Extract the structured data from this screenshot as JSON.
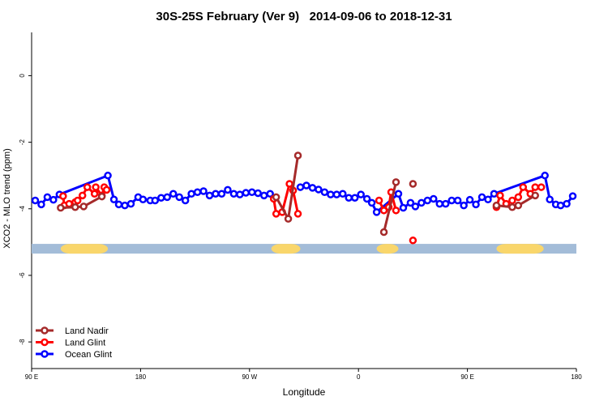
{
  "chart_data": {
    "type": "line",
    "title": "30S-25S February (Ver 9)   2014-09-06 to 2018-12-31",
    "x_label": "Longitude",
    "y_label": "XCO2 - MLO trend (ppm)",
    "xlim": [
      90,
      540
    ],
    "ylim": [
      -8.8,
      1.3
    ],
    "xticks": [
      {
        "value": 90,
        "label": "90 E"
      },
      180,
      {
        "value": 270,
        "label": "90 W"
      },
      {
        "value": 360,
        "label": "0"
      },
      {
        "value": 450,
        "label": "90 E"
      },
      {
        "value": 540,
        "label": "180"
      }
    ],
    "yticks": [
      0,
      -2,
      -4,
      -6,
      -8
    ],
    "band_y": -5.2,
    "ocean_color": "#a3bcd8",
    "land_color": "#f9d66b",
    "land_bands": [
      [
        114,
        153
      ],
      [
        288,
        312
      ],
      [
        375,
        393
      ],
      [
        474,
        513
      ]
    ],
    "legend": "bottom-left",
    "series": [
      {
        "name": "Land Nadir",
        "color": "#a52a2a",
        "x": [
          114,
          126,
          133,
          148,
          220,
          292,
          302,
          310,
          380,
          381,
          391,
          398,
          405,
          460,
          474,
          487,
          492,
          506
        ],
        "values": [
          -3.97,
          -3.95,
          -3.93,
          -3.63,
          null,
          -3.65,
          -4.3,
          -2.4,
          null,
          -4.7,
          -3.2,
          null,
          -3.25,
          null,
          -3.9,
          -3.95,
          -3.9,
          -3.6
        ]
      },
      {
        "name": "Land Glint",
        "color": "#ff0000",
        "x": [
          116,
          117,
          121,
          126,
          128,
          132,
          136,
          142,
          143,
          148,
          150,
          152,
          220,
          290,
          292,
          297,
          303,
          306,
          310,
          370,
          377,
          381,
          385,
          387,
          391,
          398,
          405,
          460,
          474,
          477,
          482,
          487,
          492,
          496,
          502,
          506,
          511
        ],
        "values": [
          -3.62,
          -3.9,
          -3.85,
          -3.8,
          -3.75,
          -3.6,
          -3.35,
          -3.55,
          -3.35,
          -3.6,
          -3.35,
          -3.43,
          null,
          -3.7,
          -4.15,
          -4.1,
          -3.25,
          -3.45,
          -4.15,
          null,
          -3.75,
          -4.05,
          -3.95,
          -3.5,
          -4.05,
          null,
          -4.95,
          null,
          -3.95,
          -3.6,
          -3.85,
          -3.75,
          -3.65,
          -3.35,
          -3.55,
          -3.35,
          -3.35
        ]
      },
      {
        "name": "Ocean Glint",
        "color": "#0000ff",
        "x": [
          93,
          98,
          103,
          108,
          113,
          153,
          158,
          162,
          167,
          172,
          178,
          182,
          188,
          192,
          197,
          202,
          207,
          212,
          217,
          222,
          227,
          232,
          237,
          242,
          247,
          252,
          257,
          262,
          267,
          272,
          277,
          282,
          287,
          300,
          312,
          317,
          322,
          327,
          332,
          337,
          342,
          347,
          352,
          357,
          362,
          367,
          371,
          375,
          393,
          397,
          403,
          407,
          412,
          417,
          422,
          427,
          432,
          437,
          442,
          447,
          452,
          457,
          462,
          467,
          472,
          514,
          518,
          523,
          527,
          532,
          537
        ],
        "values": [
          -3.75,
          -3.87,
          -3.65,
          -3.73,
          -3.57,
          -3.0,
          -3.72,
          -3.87,
          -3.9,
          -3.85,
          -3.65,
          -3.72,
          -3.75,
          -3.75,
          -3.67,
          -3.65,
          -3.55,
          -3.65,
          -3.75,
          -3.55,
          -3.5,
          -3.47,
          -3.6,
          -3.55,
          -3.55,
          -3.43,
          -3.55,
          -3.57,
          -3.52,
          -3.5,
          -3.53,
          -3.6,
          -3.55,
          null,
          -3.35,
          -3.3,
          -3.37,
          -3.42,
          -3.5,
          -3.57,
          -3.57,
          -3.55,
          -3.67,
          -3.67,
          -3.57,
          -3.7,
          -3.82,
          -4.1,
          -3.55,
          -3.97,
          -3.82,
          -3.93,
          -3.82,
          -3.75,
          -3.7,
          -3.85,
          -3.85,
          -3.75,
          -3.75,
          -3.9,
          -3.73,
          -3.87,
          -3.65,
          -3.72,
          -3.55,
          -3.0,
          -3.72,
          -3.87,
          -3.9,
          -3.85,
          -3.62
        ]
      }
    ]
  }
}
